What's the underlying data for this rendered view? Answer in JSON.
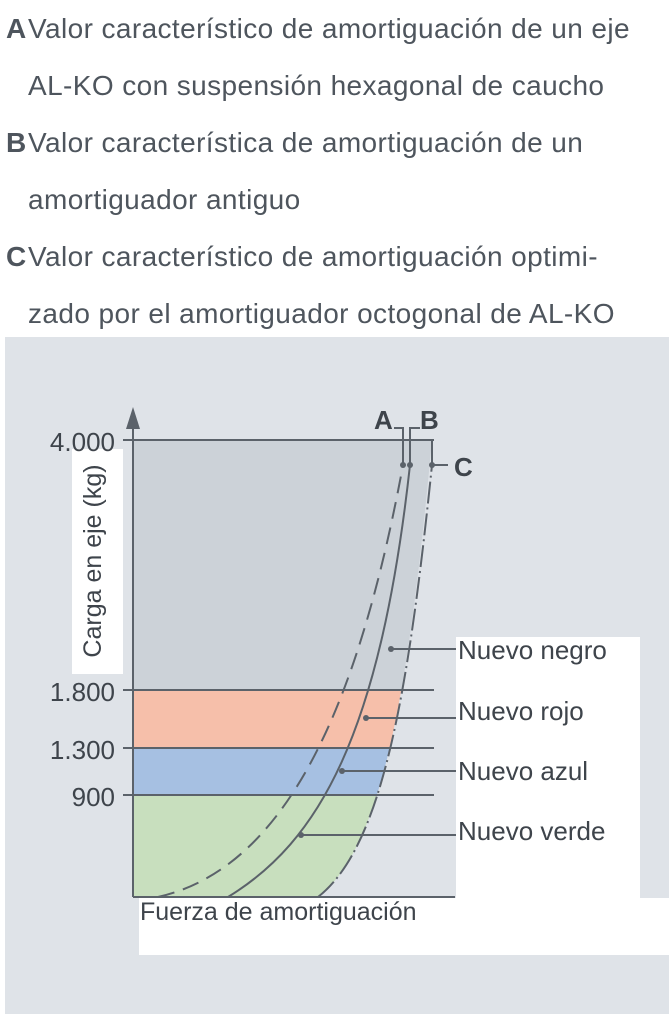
{
  "legend": [
    {
      "key": "A",
      "lines": [
        "Valor característico de amortiguación de un eje",
        "AL-KO con suspensión hexagonal de caucho"
      ]
    },
    {
      "key": "B",
      "lines": [
        "Valor característica de amortiguación de un",
        "amortiguador antiguo"
      ]
    },
    {
      "key": "C",
      "lines": [
        "Valor característico de amortiguación optimi-",
        "zado por el amortiguador octogonal de AL-KO"
      ]
    }
  ],
  "axes": {
    "y_label": "Carga en eje (kg)",
    "x_label": "Fuerza de amortiguación",
    "y_ticks": [
      "4.000",
      "1.800",
      "1.300",
      "900"
    ]
  },
  "curve_labels": {
    "a": "A",
    "b": "B",
    "c": "C"
  },
  "zones": [
    {
      "label": "Nuevo negro",
      "color": "#ccd2d8"
    },
    {
      "label": "Nuevo rojo",
      "color": "#f6bfaa"
    },
    {
      "label": "Nuevo azul",
      "color": "#a6c0e2"
    },
    {
      "label": "Nuevo verde",
      "color": "#c8dfbe"
    }
  ],
  "colors": {
    "panel": "#dfe3e8",
    "line": "#5b626a"
  }
}
